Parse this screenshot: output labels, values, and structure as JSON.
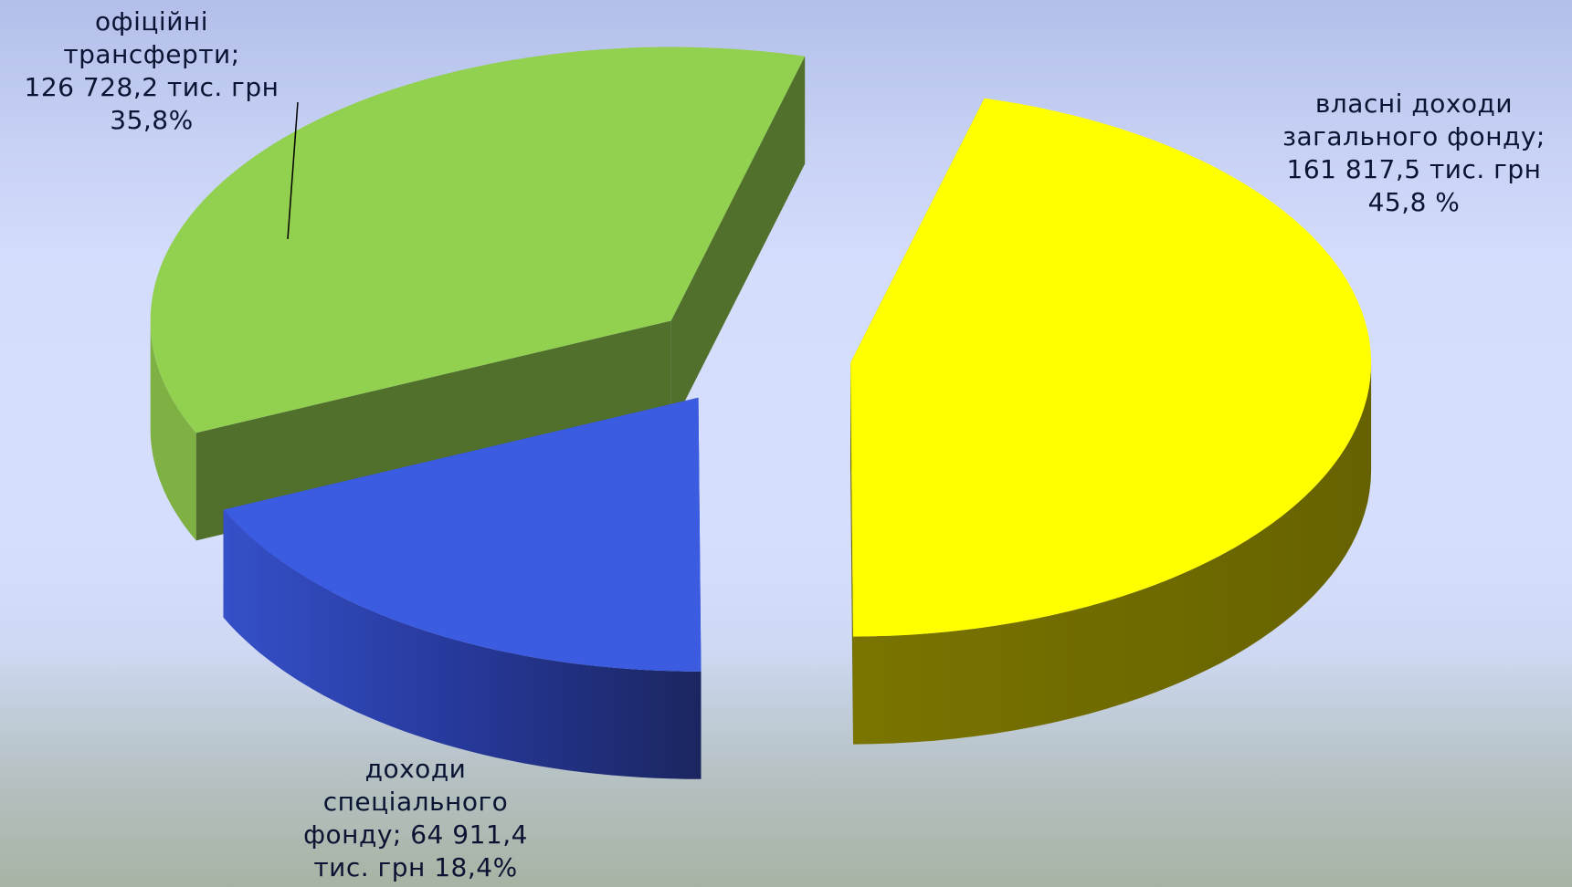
{
  "chart_data": {
    "type": "pie",
    "style": "3d-exploded",
    "unit": "тис. грн",
    "slices": [
      {
        "category": "власні доходи загального фонду",
        "value": 161817.5,
        "percent": 45.8,
        "color": "#ffff00",
        "label_lines": [
          "власні доходи",
          "загального фонду;",
          "161 817,5 тис. грн",
          "45,8 %"
        ]
      },
      {
        "category": "доходи спеціального фонду",
        "value": 64911.4,
        "percent": 18.4,
        "color": "#3b5ce0",
        "label_lines": [
          "доходи",
          "спеціального",
          "фонду; 64 911,4",
          "тис. грн 18,4%"
        ]
      },
      {
        "category": "офіційні трансферти",
        "value": 126728.2,
        "percent": 35.8,
        "color": "#92d050",
        "label_lines": [
          "офіційні",
          "трансферти;",
          "126 728,2 тис. грн",
          "35,8%"
        ]
      }
    ],
    "legend": "none"
  }
}
